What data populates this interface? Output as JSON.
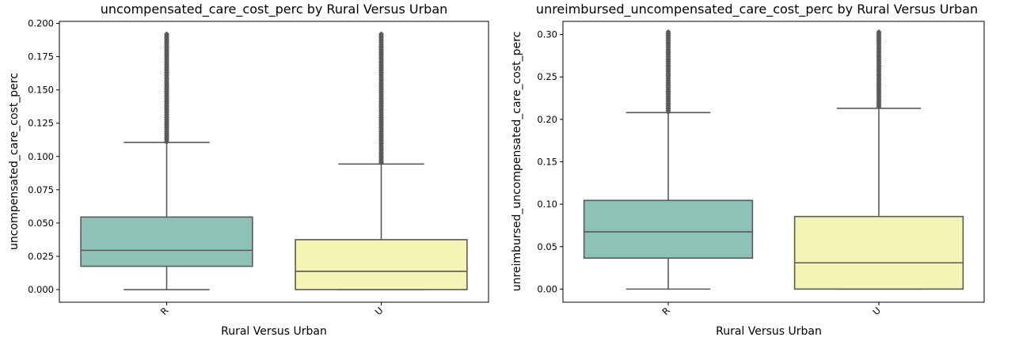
{
  "chart_data": [
    {
      "type": "box",
      "title": "uncompensated_care_cost_perc by Rural Versus Urban",
      "xlabel": "Rural Versus Urban",
      "ylabel": "uncompensated_care_cost_perc",
      "categories": [
        "R",
        "U"
      ],
      "yticks": [
        "0.000",
        "0.025",
        "0.050",
        "0.075",
        "0.100",
        "0.125",
        "0.150",
        "0.175",
        "0.200"
      ],
      "ylim": [
        -0.0095,
        0.2015
      ],
      "boxes": [
        {
          "category": "R",
          "whisker_low": 0.0,
          "q1": 0.0175,
          "median": 0.0295,
          "q3": 0.0545,
          "whisker_high": 0.1105,
          "outlier_min": 0.1105,
          "outlier_max": 0.192,
          "color": "#8dc3b7"
        },
        {
          "category": "U",
          "whisker_low": 0.0,
          "q1": 0.0,
          "median": 0.0137,
          "q3": 0.0375,
          "whisker_high": 0.0943,
          "outlier_min": 0.0943,
          "outlier_max": 0.192,
          "color": "#f4f4b4"
        }
      ]
    },
    {
      "type": "box",
      "title": "unreimbursed_uncompensated_care_cost_perc by Rural Versus Urban",
      "xlabel": "Rural Versus Urban",
      "ylabel": "unreimbursed_uncompensated_care_cost_perc",
      "categories": [
        "R",
        "U"
      ],
      "yticks": [
        "0.00",
        "0.05",
        "0.10",
        "0.15",
        "0.20",
        "0.25",
        "0.30"
      ],
      "ylim": [
        -0.0155,
        0.3155
      ],
      "boxes": [
        {
          "category": "R",
          "whisker_low": 0.0,
          "q1": 0.0365,
          "median": 0.0675,
          "q3": 0.1045,
          "whisker_high": 0.208,
          "outlier_min": 0.208,
          "outlier_max": 0.303,
          "color": "#8dc3b7"
        },
        {
          "category": "U",
          "whisker_low": 0.0,
          "q1": 0.0,
          "median": 0.031,
          "q3": 0.0855,
          "whisker_high": 0.213,
          "outlier_min": 0.213,
          "outlier_max": 0.303,
          "color": "#f4f4b4"
        }
      ]
    }
  ]
}
